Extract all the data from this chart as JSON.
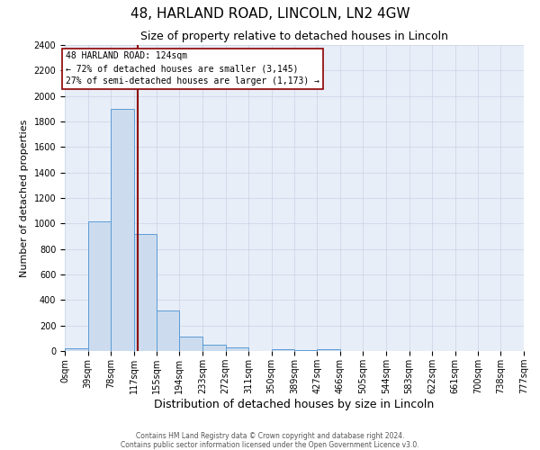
{
  "title": "48, HARLAND ROAD, LINCOLN, LN2 4GW",
  "subtitle": "Size of property relative to detached houses in Lincoln",
  "xlabel": "Distribution of detached houses by size in Lincoln",
  "ylabel": "Number of detached properties",
  "bin_edges": [
    0,
    39,
    78,
    117,
    155,
    194,
    233,
    272,
    311,
    350,
    389,
    427,
    466,
    505,
    544,
    583,
    622,
    661,
    700,
    738,
    777
  ],
  "bin_labels": [
    "0sqm",
    "39sqm",
    "78sqm",
    "117sqm",
    "155sqm",
    "194sqm",
    "233sqm",
    "272sqm",
    "311sqm",
    "350sqm",
    "389sqm",
    "427sqm",
    "466sqm",
    "505sqm",
    "544sqm",
    "583sqm",
    "622sqm",
    "661sqm",
    "700sqm",
    "738sqm",
    "777sqm"
  ],
  "bar_heights": [
    20,
    1020,
    1900,
    920,
    320,
    110,
    50,
    30,
    0,
    15,
    10,
    15,
    0,
    0,
    0,
    0,
    0,
    0,
    0,
    0
  ],
  "bar_color": "#ccdcee",
  "bar_edge_color": "#5b9bd5",
  "property_line_x": 124,
  "property_line_color": "#8b0000",
  "ylim_max": 2400,
  "yticks": [
    0,
    200,
    400,
    600,
    800,
    1000,
    1200,
    1400,
    1600,
    1800,
    2000,
    2200,
    2400
  ],
  "annotation_title": "48 HARLAND ROAD: 124sqm",
  "annotation_line1": "← 72% of detached houses are smaller (3,145)",
  "annotation_line2": "27% of semi-detached houses are larger (1,173) →",
  "annotation_box_facecolor": "#ffffff",
  "annotation_box_edgecolor": "#8b0000",
  "plot_bg_color": "#e8eef8",
  "grid_color": "#c8d4e4",
  "footer_line1": "Contains HM Land Registry data © Crown copyright and database right 2024.",
  "footer_line2": "Contains public sector information licensed under the Open Government Licence v3.0.",
  "title_fontsize": 11,
  "subtitle_fontsize": 9,
  "ylabel_fontsize": 8,
  "xlabel_fontsize": 9,
  "tick_fontsize": 7,
  "annotation_fontsize": 7,
  "footer_fontsize": 5.5
}
